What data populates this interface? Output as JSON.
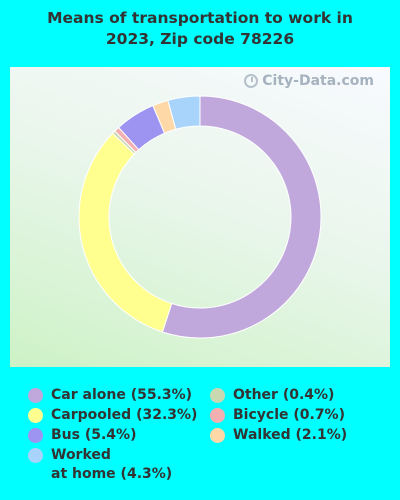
{
  "chart_data": {
    "type": "donut",
    "title": "Means of transportation to work in 2023, Zip code 78226",
    "title_lines": [
      "Means of transportation to work in",
      "2023, Zip code 78226"
    ],
    "watermark": "City-Data.com",
    "legend_position": "bottom",
    "series": [
      {
        "label": "Car alone (55.3%)",
        "value": 55.3,
        "color": "#c0a8dc"
      },
      {
        "label": "Other (0.4%)",
        "value": 0.4,
        "color": "#c8d8b0"
      },
      {
        "label": "Carpooled (32.3%)",
        "value": 32.3,
        "color": "#ffff90"
      },
      {
        "label": "Bicycle (0.7%)",
        "value": 0.7,
        "color": "#f4b0b0"
      },
      {
        "label": "Bus (5.4%)",
        "value": 5.4,
        "color": "#9c94f0"
      },
      {
        "label": "Walked (2.1%)",
        "value": 2.1,
        "color": "#ffd8a8"
      },
      {
        "label": "Worked\nat home (4.3%)",
        "value": 4.3,
        "color": "#a8d4fc"
      }
    ]
  }
}
